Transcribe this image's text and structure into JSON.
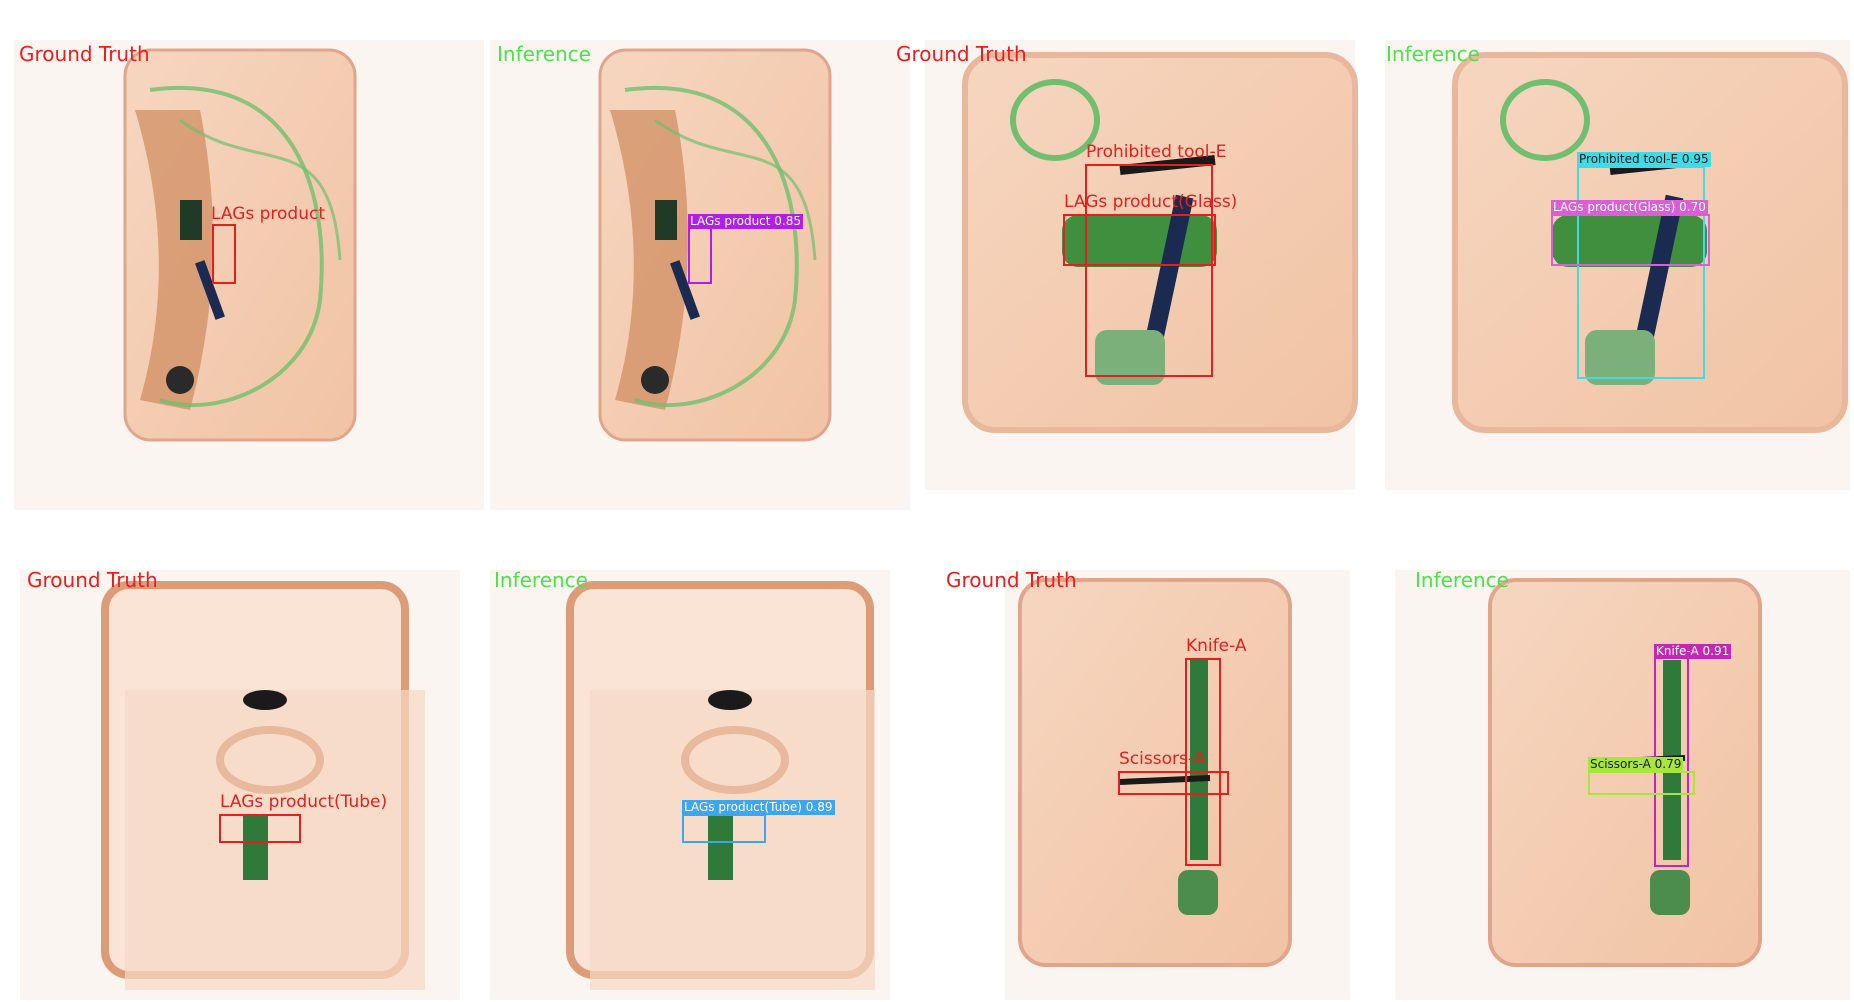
{
  "captions": {
    "ground_truth": "Ground Truth",
    "inference": "Inference"
  },
  "colors": {
    "ground_truth": "#e51f1f",
    "inference_caption": "#4ae34a",
    "lags_product": "#b21ee6",
    "prohibited_tool_e": "#3fdce8",
    "lags_product_glass": "#d85fd8",
    "lags_product_tube": "#3ea5f0",
    "knife_a": "#c427b4",
    "scissors_a": "#a7e63c"
  },
  "samples": [
    {
      "gt_labels": [
        "LAGs product"
      ],
      "inf_labels": [
        "LAGs product 0.85"
      ]
    },
    {
      "gt_labels": [
        "Prohibited tool-E",
        "LAGs product(Glass)"
      ],
      "inf_labels": [
        "Prohibited tool-E 0.95",
        "LAGs product(Glass) 0.70"
      ]
    },
    {
      "gt_labels": [
        "LAGs product(Tube)"
      ],
      "inf_labels": [
        "LAGs product(Tube) 0.89"
      ]
    },
    {
      "gt_labels": [
        "Knife-A",
        "Scissors-A"
      ],
      "inf_labels": [
        "Knife-A 0.91",
        "Scissors-A 0.79"
      ]
    }
  ]
}
